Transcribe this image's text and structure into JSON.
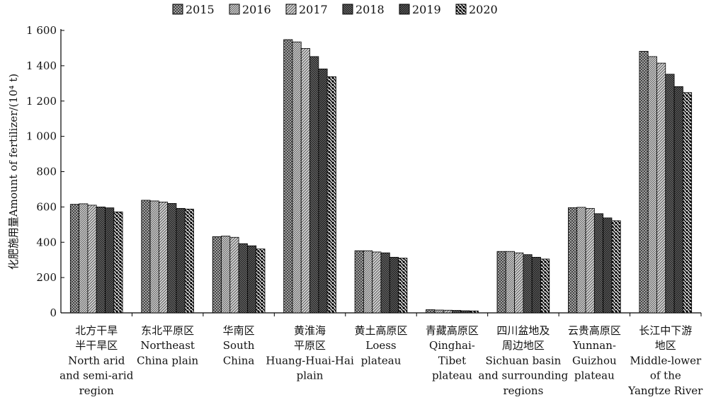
{
  "chart_data": {
    "type": "bar",
    "title": "",
    "ylabel": "化肥施用量Amount of fertilizer/(10⁴ t)",
    "ylim": [
      0,
      1600
    ],
    "yticks": [
      0,
      200,
      400,
      600,
      800,
      1000,
      1200,
      1400,
      1600
    ],
    "ytick_labels": [
      "0",
      "200",
      "400",
      "600",
      "800",
      "1 000",
      "1 200",
      "1 400",
      "1 600"
    ],
    "grid": false,
    "legend_position": "top",
    "categories": [
      [
        "北方干旱",
        "半干旱区",
        "North arid",
        "and semi-arid",
        "region"
      ],
      [
        "东北平原区",
        "Northeast",
        "China plain"
      ],
      [
        "华南区",
        "South",
        "China"
      ],
      [
        "黄淮海",
        "平原区",
        "Huang-Huai-Hai",
        "plain"
      ],
      [
        "黄土高原区",
        "Loess",
        "plateau"
      ],
      [
        "青藏高原区",
        "Qinghai-",
        "Tibet",
        "plateau"
      ],
      [
        "四川盆地及",
        "周边地区",
        "Sichuan basin",
        "and surrounding",
        "regions"
      ],
      [
        "云贵高原区",
        "Yunnan-",
        "Guizhou",
        "plateau"
      ],
      [
        "长江中下游",
        "地区",
        "Middle-lower",
        "of the",
        "Yangtze River"
      ]
    ],
    "series": [
      {
        "name": "2015",
        "pattern": "crosshatch",
        "values": [
          615,
          638,
          432,
          1548,
          352,
          18,
          348,
          596,
          1482
        ]
      },
      {
        "name": "2016",
        "pattern": "diag-right-dense",
        "values": [
          618,
          634,
          435,
          1535,
          352,
          16,
          348,
          598,
          1452
        ]
      },
      {
        "name": "2017",
        "pattern": "diag-right",
        "values": [
          610,
          628,
          428,
          1498,
          345,
          15,
          340,
          592,
          1415
        ]
      },
      {
        "name": "2018",
        "pattern": "diag-left-dense",
        "values": [
          600,
          620,
          392,
          1452,
          340,
          14,
          330,
          562,
          1352
        ]
      },
      {
        "name": "2019",
        "pattern": "diag-right-dark",
        "values": [
          595,
          592,
          380,
          1382,
          315,
          12,
          315,
          538,
          1282
        ]
      },
      {
        "name": "2020",
        "pattern": "diag-left-wide",
        "values": [
          572,
          588,
          362,
          1338,
          310,
          11,
          305,
          522,
          1248
        ]
      }
    ]
  }
}
